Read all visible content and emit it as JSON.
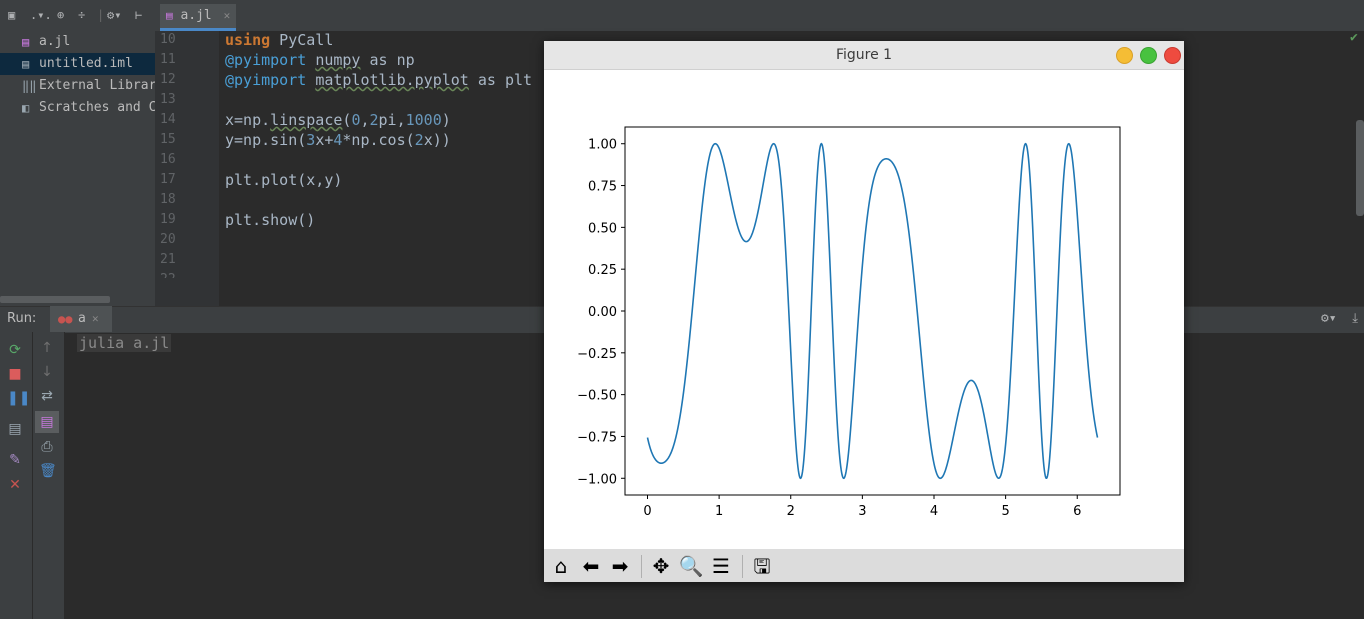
{
  "project": {
    "items": [
      {
        "label": "a.jl",
        "icon": "julia-file-icon"
      },
      {
        "label": "untitled.iml",
        "icon": "module-file-icon"
      },
      {
        "label": "External Librar",
        "icon": "library-icon"
      },
      {
        "label": "Scratches and C",
        "icon": "scratches-icon"
      }
    ],
    "toolbar_text": ".▾."
  },
  "editor": {
    "tab_label": "a.jl",
    "line_numbers": [
      "10",
      "11",
      "12",
      "13",
      "14",
      "15",
      "16",
      "17",
      "18",
      "19",
      "20",
      "21",
      "22"
    ],
    "lines": {
      "l10_kw": "using",
      "l10_rest": " PyCall",
      "l11_mac": "@pyimport",
      "l11_mod": "numpy",
      "l11_rest": " as np",
      "l12_mac": "@pyimport",
      "l12_mod": "matplotlib.pyplot",
      "l12_rest": " as plt",
      "l14_a": "x=np.",
      "l14_fn": "linspace",
      "l14_b": "(",
      "l14_n1": "0",
      "l14_c": ",",
      "l14_n2": "2",
      "l14_d": "pi,",
      "l14_n3": "1000",
      "l14_e": ")",
      "l15_a": "y=np.sin(",
      "l15_n1": "3",
      "l15_b": "x+",
      "l15_n2": "4",
      "l15_c": "*np.cos(",
      "l15_n3": "2",
      "l15_d": "x))",
      "l17": "plt.plot(x,y)",
      "l19": "plt.show()"
    }
  },
  "run": {
    "label": "Run:",
    "tab": "a",
    "console_text": "julia a.jl"
  },
  "figure": {
    "title": "Figure 1",
    "toolbar": [
      "home-icon",
      "back-icon",
      "forward-icon",
      "pan-icon",
      "zoom-icon",
      "configure-icon",
      "save-icon"
    ]
  },
  "chart_data": {
    "type": "line",
    "title": "",
    "xlabel": "",
    "ylabel": "",
    "function": "y = sin(3x + 4*cos(2x))",
    "x_range": [
      0,
      6.283185307
    ],
    "n_points": 1000,
    "xlim": [
      -0.314,
      6.597
    ],
    "ylim": [
      -1.1,
      1.1
    ],
    "x_ticks": [
      "0",
      "1",
      "2",
      "3",
      "4",
      "5",
      "6"
    ],
    "y_ticks": [
      "1.00",
      "0.75",
      "0.50",
      "0.25",
      "0.00",
      "−0.25",
      "−0.50",
      "−0.75",
      "−1.00"
    ],
    "line_color": "#1f77b4",
    "grid": false
  }
}
